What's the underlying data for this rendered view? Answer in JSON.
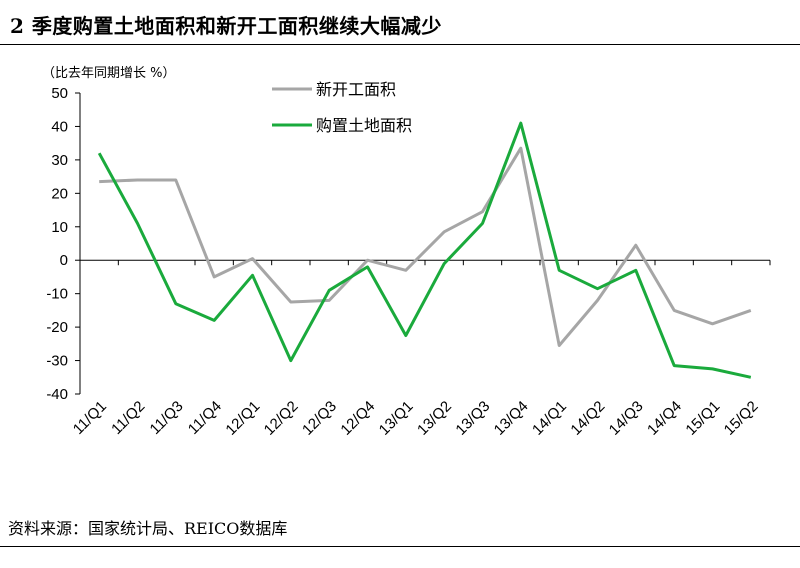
{
  "header": {
    "title": "2 季度购置土地面积和新开工面积继续大幅减少"
  },
  "footer": {
    "source": "资料来源：国家统计局、REICO数据库"
  },
  "chart_data": {
    "type": "line",
    "ylabel": "（比去年同期增长  %）",
    "ylim": [
      -40,
      50
    ],
    "yticks": [
      50,
      40,
      30,
      20,
      10,
      0,
      -10,
      -20,
      -30,
      -40
    ],
    "grid": false,
    "legend_position": "top-center",
    "categories": [
      "11/Q1",
      "11/Q2",
      "11/Q3",
      "11/Q4",
      "12/Q1",
      "12/Q2",
      "12/Q3",
      "12/Q4",
      "13/Q1",
      "13/Q2",
      "13/Q3",
      "13/Q4",
      "14/Q1",
      "14/Q2",
      "14/Q3",
      "14/Q4",
      "15/Q1",
      "15/Q2"
    ],
    "series": [
      {
        "name": "新开工面积",
        "color": "#a6a6a6",
        "values": [
          23.5,
          24,
          24,
          -5,
          0.5,
          -12.5,
          -12,
          0,
          -3,
          8.5,
          14.5,
          33.5,
          -25.5,
          -12,
          4.5,
          -15,
          -19,
          -15
        ]
      },
      {
        "name": "购置土地面积",
        "color": "#1aaa3c",
        "values": [
          32,
          11,
          -13,
          -18,
          -4.5,
          -30,
          -9,
          -2,
          -22.5,
          -1,
          11,
          41,
          -3,
          -8.5,
          -3,
          -31.5,
          -32.5,
          -35
        ]
      }
    ]
  }
}
